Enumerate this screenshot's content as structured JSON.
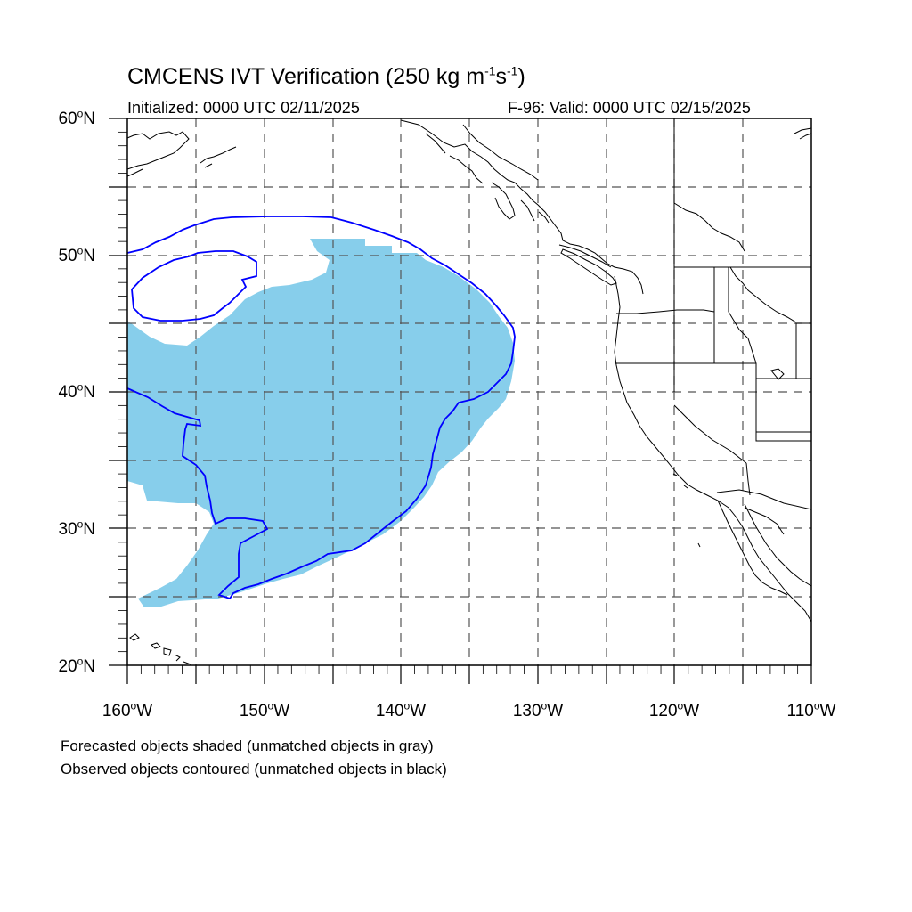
{
  "title": {
    "main": "CMCENS IVT Verification (250 kg m",
    "exp1": "-1",
    "mid": "s",
    "exp2": "-1",
    "end": ")"
  },
  "subtitle": {
    "left": "Initialized: 0000 UTC 02/11/2025",
    "right": "F-96: Valid: 0000 UTC 02/15/2025"
  },
  "map": {
    "lon_range": [
      -160,
      -110
    ],
    "lat_range": [
      20,
      60
    ],
    "gridlines": "dashed",
    "lat_ticks": [
      {
        "value": "60",
        "suffix": "N"
      },
      {
        "value": "50",
        "suffix": "N"
      },
      {
        "value": "40",
        "suffix": "N"
      },
      {
        "value": "30",
        "suffix": "N"
      },
      {
        "value": "20",
        "suffix": "N"
      }
    ],
    "lon_ticks": [
      {
        "value": "160",
        "suffix": "W"
      },
      {
        "value": "150",
        "suffix": "W"
      },
      {
        "value": "140",
        "suffix": "W"
      },
      {
        "value": "130",
        "suffix": "W"
      },
      {
        "value": "120",
        "suffix": "W"
      },
      {
        "value": "110",
        "suffix": "W"
      }
    ],
    "degree_symbol": "o",
    "colors": {
      "forecast_fill": "#87ceeb",
      "observed_contour": "#0000ff",
      "coastline": "#000000"
    }
  },
  "legend": {
    "line1": "Forecasted objects shaded (unmatched objects in gray)",
    "line2": "Observed objects contoured (unmatched objects in black)"
  }
}
